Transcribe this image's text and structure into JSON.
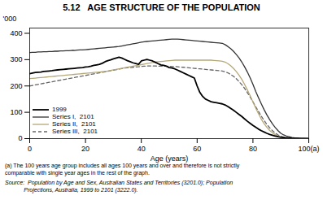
{
  "chart_data": {
    "type": "line",
    "title": "5.12   AGE STRUCTURE OF THE POPULATION",
    "xlabel": "Age (years)",
    "ylabel": "'000",
    "footnotes": [
      "(a) The 100 years age group includes all ages 100 years and over and therefore is not strictly",
      "comparable with single year ages in the rest of the graph."
    ],
    "source": [
      "Source:  Population by Age and Sex, Australian States and Territories (3201.0); Population",
      "            Projections, Australia, 1999 to 2101 (3222.0)."
    ],
    "xlim": [
      0,
      100
    ],
    "ylim": [
      0,
      420
    ],
    "xticks": [
      0,
      20,
      40,
      60,
      80,
      {
        "value": 100,
        "label": "100(a)"
      }
    ],
    "yticks": [
      0,
      100,
      200,
      300,
      400
    ],
    "grid": false,
    "legend": "lower left",
    "x": [
      0,
      1,
      2,
      3,
      4,
      5,
      6,
      7,
      8,
      9,
      10,
      11,
      12,
      13,
      14,
      15,
      16,
      17,
      18,
      19,
      20,
      21,
      22,
      23,
      24,
      25,
      26,
      27,
      28,
      29,
      30,
      31,
      32,
      33,
      34,
      35,
      36,
      37,
      38,
      39,
      40,
      41,
      42,
      43,
      44,
      45,
      46,
      47,
      48,
      49,
      50,
      51,
      52,
      53,
      54,
      55,
      56,
      57,
      58,
      59,
      60,
      61,
      62,
      63,
      64,
      65,
      66,
      67,
      68,
      69,
      70,
      71,
      72,
      73,
      74,
      75,
      76,
      77,
      78,
      79,
      80,
      81,
      82,
      83,
      84,
      85,
      86,
      87,
      88,
      89,
      90,
      91,
      92,
      93,
      94,
      95,
      96,
      97,
      98,
      99,
      100
    ],
    "series": [
      {
        "name": "1999",
        "color": "#000000",
        "line_style": "solid",
        "values": [
          247,
          249,
          251,
          252,
          253,
          255,
          256,
          257,
          258,
          260,
          261,
          262,
          263,
          264,
          265,
          266,
          267,
          268,
          269,
          270,
          272,
          273,
          275,
          278,
          280,
          282,
          286,
          292,
          296,
          299,
          303,
          306,
          309,
          306,
          301,
          296,
          292,
          288,
          285,
          282,
          295,
          298,
          301,
          298,
          295,
          290,
          285,
          280,
          278,
          275,
          270,
          268,
          265,
          260,
          255,
          250,
          245,
          240,
          235,
          230,
          200,
          175,
          160,
          150,
          145,
          140,
          138,
          136,
          134,
          132,
          128,
          122,
          115,
          108,
          100,
          92,
          84,
          75,
          66,
          58,
          50,
          43,
          36,
          30,
          25,
          20,
          16,
          13,
          10,
          7,
          5,
          4,
          3,
          2,
          1,
          1,
          1,
          0,
          0,
          0,
          0
        ]
      },
      {
        "name": "Series I,  2101",
        "color": "#333333",
        "line_style": "solid",
        "values": [
          327,
          328,
          328,
          329,
          329,
          330,
          330,
          331,
          331,
          332,
          332,
          333,
          333,
          334,
          334,
          335,
          335,
          336,
          337,
          337,
          338,
          339,
          340,
          341,
          342,
          343,
          344,
          345,
          346,
          347,
          348,
          349,
          350,
          352,
          354,
          356,
          358,
          360,
          362,
          364,
          366,
          368,
          369,
          370,
          371,
          372,
          373,
          374,
          375,
          376,
          377,
          378,
          378,
          378,
          377,
          376,
          375,
          374,
          373,
          372,
          371,
          370,
          369,
          368,
          367,
          366,
          365,
          364,
          363,
          362,
          357,
          350,
          342,
          332,
          320,
          307,
          291,
          273,
          253,
          231,
          206,
          179,
          155,
          132,
          110,
          90,
          72,
          56,
          42,
          30,
          20,
          14,
          10,
          7,
          4,
          3,
          2,
          1,
          1,
          0,
          0
        ]
      },
      {
        "name": "Series II,  2101",
        "color": "#b5a878",
        "line_style": "solid",
        "values": [
          228,
          229,
          230,
          231,
          232,
          233,
          234,
          235,
          236,
          237,
          238,
          239,
          240,
          241,
          242,
          243,
          244,
          245,
          246,
          247,
          248,
          249,
          250,
          251,
          252,
          253,
          254,
          255,
          257,
          259,
          261,
          263,
          265,
          267,
          269,
          271,
          273,
          275,
          277,
          279,
          281,
          283,
          285,
          287,
          289,
          291,
          292,
          293,
          294,
          295,
          296,
          297,
          298,
          298,
          298,
          298,
          298,
          298,
          298,
          298,
          298,
          298,
          298,
          298,
          298,
          298,
          297,
          296,
          295,
          294,
          291,
          285,
          277,
          267,
          255,
          241,
          225,
          206,
          185,
          163,
          139,
          116,
          94,
          74,
          57,
          43,
          31,
          22,
          15,
          9,
          5,
          4,
          3,
          2,
          1,
          1,
          0,
          0,
          0,
          0,
          0
        ]
      },
      {
        "name": "Series III,  2101",
        "color": "#666666",
        "line_style": "dashed",
        "values": [
          200,
          202,
          204,
          206,
          208,
          210,
          212,
          214,
          216,
          218,
          220,
          222,
          224,
          226,
          228,
          230,
          232,
          234,
          236,
          238,
          240,
          242,
          244,
          246,
          248,
          250,
          252,
          254,
          256,
          258,
          260,
          262,
          264,
          266,
          268,
          269,
          270,
          271,
          272,
          273,
          274,
          275,
          276,
          276,
          276,
          276,
          275,
          275,
          275,
          275,
          275,
          274,
          274,
          273,
          272,
          271,
          270,
          269,
          268,
          267,
          266,
          265,
          264,
          263,
          262,
          261,
          260,
          259,
          258,
          257,
          254,
          250,
          244,
          237,
          228,
          217,
          205,
          191,
          175,
          158,
          140,
          121,
          103,
          85,
          69,
          54,
          41,
          30,
          21,
          14,
          9,
          6,
          4,
          2,
          1,
          1,
          0,
          0,
          0,
          0,
          0
        ]
      }
    ]
  }
}
